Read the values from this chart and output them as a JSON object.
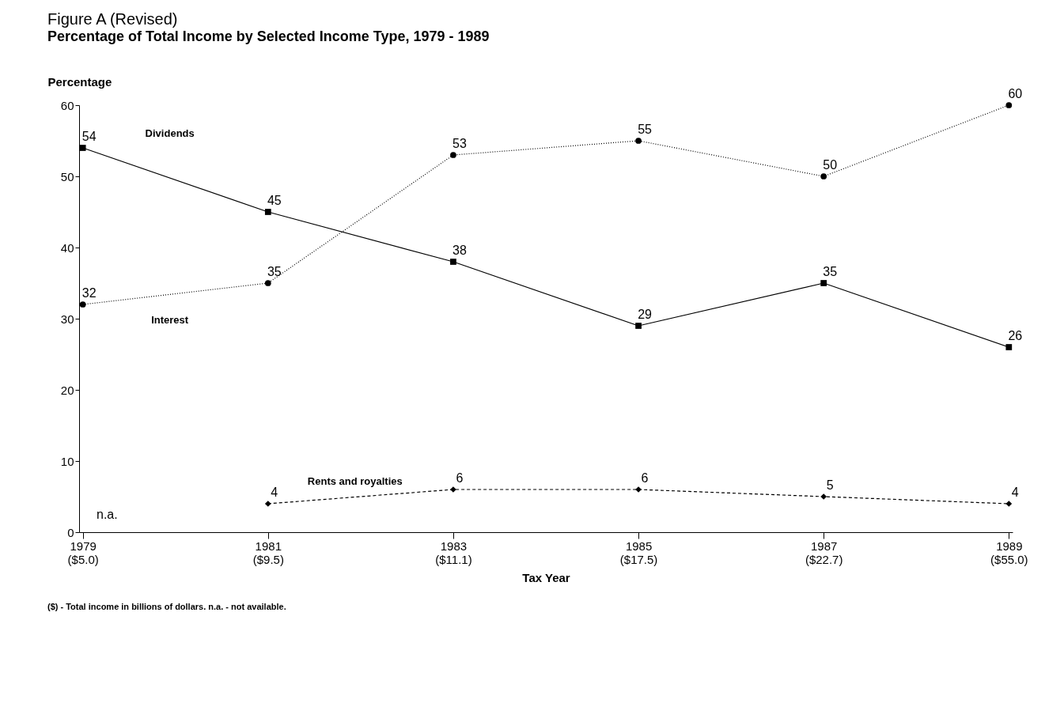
{
  "chart_data": {
    "type": "line",
    "title": "Figure A  (Revised)",
    "subtitle": "Percentage of Total Income by Selected Income Type, 1979 - 1989",
    "ylabel": "Percentage",
    "xlabel": "Tax Year",
    "categories": [
      "1979\n($5.0)",
      "1981\n($9.5)",
      "1983\n($11.1)",
      "1985\n($17.5)",
      "1987\n($22.7)",
      "1989\n($55.0)"
    ],
    "series": [
      {
        "name": "Dividends",
        "color": "#000000",
        "marker": "square",
        "line_style": "solid",
        "values": [
          54,
          45,
          38,
          29,
          35,
          26
        ]
      },
      {
        "name": "Interest",
        "color": "#000000",
        "marker": "circle",
        "line_style": "dotted",
        "values": [
          32,
          35,
          53,
          55,
          50,
          60
        ]
      },
      {
        "name": "Rents and royalties",
        "color": "#000000",
        "marker": "diamond",
        "line_style": "dashed",
        "values": [
          null,
          4,
          6,
          6,
          5,
          4
        ]
      }
    ],
    "ylim": [
      0,
      60
    ],
    "yticks": [
      0,
      10,
      20,
      30,
      40,
      50,
      60
    ],
    "grid": false,
    "data_labels": true,
    "annotations": [
      "n.a.",
      "($) - Total income in billions of dollars.     n.a. - not available."
    ]
  }
}
